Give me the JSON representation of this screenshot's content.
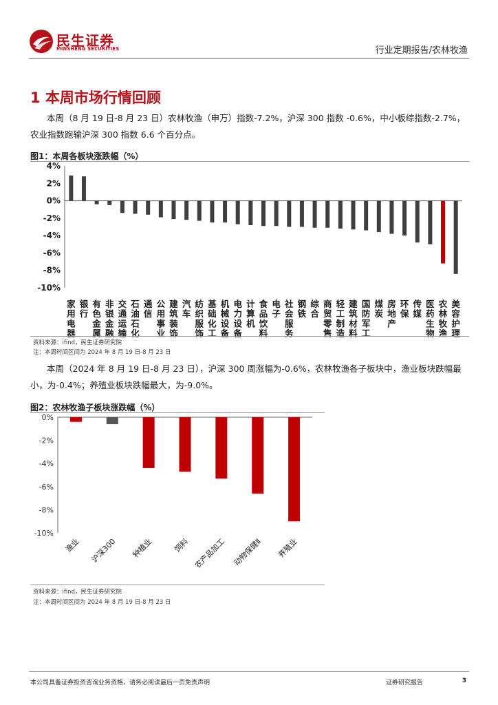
{
  "header": {
    "brand_cn": "民生证券",
    "brand_en": "MINSHENG SECURITIES",
    "report_type": "行业定期报告/农林牧渔"
  },
  "section": {
    "title": "1 本周市场行情回顾",
    "para1": "本周（8 月 19 日-8 月 23 日）农林牧渔（申万）指数-7.2%，沪深 300 指数 -0.6%，中小板综指数-2.7%，农业指数跑输沪深 300 指数 6.6 个百分点。",
    "para2": "本周（2024 年 8 月 19 日-8 月 23 日），沪深 300 周涨幅为-0.6%，农林牧渔各子板块中，渔业板块跌幅最小，为-0.4%；养殖业板块跌幅最大，为-9.0%。"
  },
  "figure1": {
    "title": "图1：本周各板块涨跌幅（%）",
    "source": "资料来源：ifind，民生证券研究院",
    "note": "注：本周时间区间为 2024 年 8 月 19 日-8 月 23 日"
  },
  "figure2": {
    "title": "图2：农林牧渔子板块涨跌幅（%）",
    "source": "资料来源：ifind，民生证券研究院",
    "note": "注：本周时间区间为 2024 年 8 月 19 日-8 月 23 日"
  },
  "footer": {
    "disclaimer": "本公司具备证券投资咨询业务资格，请务必阅读最后一页免责声明",
    "label": "证券研究报告",
    "page": "3"
  },
  "colors": {
    "brand": "#b5121b",
    "bar_dark": "#3f3f3f",
    "bar_highlight": "#c00000"
  },
  "chart_data": [
    {
      "type": "bar",
      "title": "图1：本周各板块涨跌幅（%）",
      "categories": [
        "家用电器",
        "银行",
        "有色金属",
        "非银金融",
        "交通运输",
        "石油石化",
        "通信",
        "公用事业",
        "建筑装饰",
        "汽车",
        "纺织服饰",
        "基础化工",
        "机械设备",
        "电力设备",
        "计算机",
        "食品饮料",
        "电子",
        "社会服务",
        "钢铁",
        "综合",
        "商贸零售",
        "轻工制造",
        "建筑材料",
        "国防军工",
        "煤炭",
        "房地产",
        "环保",
        "传媒",
        "医药生物",
        "农林牧渔",
        "美容护理"
      ],
      "values": [
        2.9,
        2.8,
        -0.4,
        -0.5,
        -1.4,
        -1.5,
        -1.6,
        -1.9,
        -2.1,
        -2.2,
        -2.3,
        -2.5,
        -2.5,
        -2.7,
        -2.8,
        -2.9,
        -2.9,
        -3.0,
        -3.0,
        -3.1,
        -3.1,
        -3.2,
        -3.3,
        -3.4,
        -3.6,
        -3.8,
        -4.0,
        -4.8,
        -5.0,
        -7.2,
        -8.4
      ],
      "highlight": "农林牧渔",
      "yticks": [
        "4%",
        "2%",
        "0%",
        "-2%",
        "-4%",
        "-6%",
        "-8%",
        "-10%"
      ],
      "ylim": [
        -10,
        4
      ],
      "grid": false,
      "legend": "none"
    },
    {
      "type": "bar",
      "title": "图2：农林牧渔子板块涨跌幅（%）",
      "categories": [
        "渔业",
        "沪深300",
        "种植业",
        "饲料",
        "农产品加工",
        "动物保健Ⅱ",
        "养殖业"
      ],
      "values": [
        -0.4,
        -0.6,
        -4.4,
        -4.7,
        -5.3,
        -6.6,
        -9.0
      ],
      "colors": [
        "#c00000",
        "#555555",
        "#c00000",
        "#c00000",
        "#c00000",
        "#c00000",
        "#c00000"
      ],
      "yticks": [
        "0%",
        "-2%",
        "-4%",
        "-6%",
        "-8%",
        "-10%"
      ],
      "ylim": [
        -10,
        0
      ],
      "grid": false,
      "legend": "none"
    }
  ]
}
